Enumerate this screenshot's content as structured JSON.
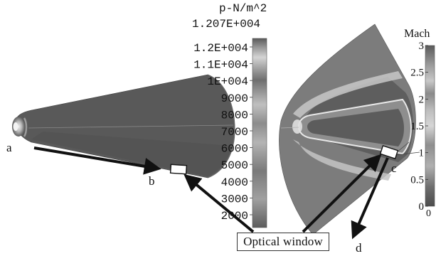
{
  "pressure_panel": {
    "unit_label": "p-N/m^2",
    "max_value_label": "1.207E+004",
    "colorbar_ticks": [
      "1.2E+004",
      "1.1E+004",
      "1E+004",
      "9000",
      "8000",
      "7000",
      "6000",
      "5000",
      "4000",
      "3000",
      "2000"
    ],
    "point_labels": {
      "a": "a",
      "b": "b"
    }
  },
  "mach_panel": {
    "unit_label": "Mach",
    "colorbar_ticks": [
      "3",
      "2.5",
      "2",
      "1.5",
      "1",
      "0.5",
      "0"
    ],
    "axis_min_label": "0",
    "point_labels": {
      "c": "c",
      "d": "d"
    }
  },
  "callout": {
    "label": "Optical window"
  },
  "colors": {
    "dark_field": "#555555",
    "mid_field": "#808080",
    "line": "#111111",
    "background": "#ffffff"
  }
}
